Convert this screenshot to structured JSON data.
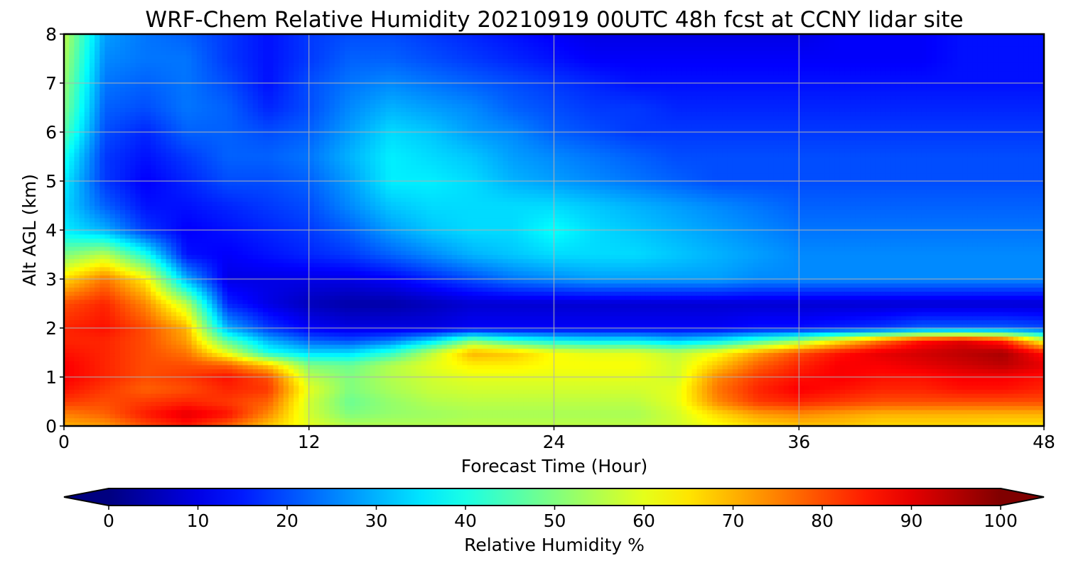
{
  "chart_data": {
    "type": "heatmap",
    "title": "WRF-Chem Relative Humidity 20210919 00UTC 48h fcst at CCNY lidar site",
    "xlabel": "Forecast Time (Hour)",
    "ylabel": "Alt AGL (km)",
    "xlim": [
      0,
      48
    ],
    "ylim": [
      0,
      8
    ],
    "x_ticks": [
      "0",
      "12",
      "24",
      "36",
      "48"
    ],
    "y_ticks": [
      "0",
      "1",
      "2",
      "3",
      "4",
      "5",
      "6",
      "7",
      "8"
    ],
    "grid": true,
    "colormap": "jet",
    "colorbar": {
      "label": "Relative Humidity %",
      "orientation": "horizontal",
      "location": "bottom",
      "range": [
        0,
        100
      ],
      "ticks": [
        "0",
        "10",
        "20",
        "30",
        "40",
        "50",
        "60",
        "70",
        "80",
        "90",
        "100"
      ],
      "extend": "both"
    },
    "x": [
      0,
      2,
      4,
      6,
      8,
      10,
      12,
      14,
      16,
      18,
      20,
      22,
      24,
      26,
      28,
      30,
      32,
      34,
      36,
      38,
      40,
      42,
      44,
      46,
      48
    ],
    "y": [
      0,
      0.25,
      0.5,
      0.75,
      1,
      1.25,
      1.5,
      1.75,
      2,
      2.5,
      3,
      3.5,
      4,
      4.5,
      5,
      5.5,
      6,
      6.5,
      7,
      7.5,
      8
    ],
    "z_rows_by_altitude": [
      [
        70,
        72,
        80,
        85,
        78,
        68,
        60,
        55,
        55,
        55,
        56,
        56,
        56,
        56,
        56,
        58,
        62,
        66,
        68,
        68,
        66,
        66,
        66,
        65,
        65
      ],
      [
        75,
        78,
        85,
        90,
        86,
        74,
        58,
        50,
        52,
        53,
        54,
        54,
        54,
        54,
        54,
        58,
        66,
        72,
        74,
        72,
        70,
        70,
        70,
        70,
        70
      ],
      [
        82,
        80,
        82,
        84,
        82,
        78,
        58,
        48,
        52,
        55,
        56,
        56,
        56,
        56,
        56,
        60,
        74,
        82,
        84,
        82,
        80,
        80,
        80,
        80,
        80
      ],
      [
        86,
        82,
        78,
        80,
        84,
        82,
        60,
        50,
        54,
        57,
        58,
        58,
        58,
        58,
        58,
        60,
        76,
        84,
        88,
        86,
        84,
        84,
        86,
        86,
        84
      ],
      [
        88,
        84,
        80,
        82,
        86,
        80,
        56,
        50,
        55,
        58,
        60,
        60,
        60,
        60,
        60,
        58,
        74,
        82,
        86,
        88,
        86,
        86,
        88,
        88,
        86
      ],
      [
        88,
        84,
        80,
        80,
        78,
        68,
        50,
        48,
        55,
        60,
        64,
        64,
        62,
        62,
        62,
        58,
        68,
        78,
        84,
        88,
        88,
        90,
        92,
        94,
        90
      ],
      [
        86,
        84,
        80,
        76,
        60,
        40,
        34,
        34,
        42,
        56,
        70,
        68,
        62,
        60,
        60,
        56,
        62,
        72,
        80,
        86,
        90,
        92,
        94,
        96,
        86
      ],
      [
        84,
        84,
        80,
        72,
        46,
        30,
        22,
        20,
        24,
        34,
        50,
        42,
        38,
        36,
        36,
        32,
        36,
        44,
        52,
        64,
        76,
        86,
        90,
        84,
        60
      ],
      [
        84,
        86,
        80,
        70,
        30,
        18,
        12,
        10,
        10,
        10,
        12,
        12,
        12,
        12,
        12,
        12,
        12,
        14,
        14,
        16,
        18,
        22,
        22,
        22,
        20
      ],
      [
        80,
        84,
        74,
        56,
        16,
        10,
        6,
        4,
        4,
        6,
        8,
        8,
        8,
        8,
        8,
        8,
        8,
        8,
        8,
        8,
        8,
        8,
        8,
        8,
        8
      ],
      [
        66,
        76,
        64,
        30,
        10,
        10,
        10,
        10,
        12,
        16,
        20,
        24,
        26,
        28,
        28,
        28,
        28,
        26,
        26,
        26,
        26,
        26,
        26,
        26,
        26
      ],
      [
        50,
        56,
        40,
        14,
        12,
        14,
        16,
        18,
        22,
        26,
        30,
        32,
        34,
        34,
        34,
        32,
        30,
        28,
        26,
        26,
        26,
        26,
        26,
        26,
        26
      ],
      [
        36,
        30,
        18,
        12,
        14,
        16,
        18,
        22,
        28,
        32,
        34,
        34,
        38,
        34,
        32,
        30,
        28,
        26,
        24,
        24,
        24,
        24,
        24,
        24,
        24
      ],
      [
        34,
        22,
        14,
        14,
        16,
        18,
        20,
        26,
        32,
        34,
        34,
        34,
        34,
        32,
        30,
        28,
        26,
        24,
        22,
        22,
        22,
        22,
        22,
        22,
        22
      ],
      [
        36,
        18,
        12,
        16,
        20,
        20,
        22,
        28,
        36,
        36,
        34,
        30,
        28,
        26,
        24,
        22,
        20,
        20,
        20,
        20,
        20,
        20,
        20,
        20,
        20
      ],
      [
        40,
        18,
        14,
        18,
        22,
        22,
        24,
        30,
        36,
        34,
        32,
        28,
        26,
        24,
        22,
        20,
        20,
        20,
        20,
        20,
        20,
        20,
        20,
        20,
        20
      ],
      [
        46,
        20,
        16,
        22,
        22,
        20,
        22,
        28,
        34,
        32,
        28,
        26,
        22,
        20,
        18,
        18,
        18,
        18,
        18,
        18,
        18,
        18,
        18,
        18,
        18
      ],
      [
        50,
        22,
        20,
        24,
        22,
        16,
        20,
        26,
        30,
        28,
        26,
        22,
        20,
        18,
        18,
        16,
        16,
        16,
        16,
        16,
        16,
        16,
        16,
        16,
        16
      ],
      [
        52,
        24,
        22,
        24,
        20,
        14,
        20,
        24,
        26,
        24,
        22,
        20,
        18,
        16,
        14,
        14,
        14,
        14,
        14,
        14,
        14,
        14,
        14,
        14,
        14
      ],
      [
        54,
        26,
        24,
        24,
        18,
        14,
        18,
        22,
        22,
        20,
        18,
        16,
        14,
        12,
        12,
        12,
        12,
        12,
        12,
        12,
        12,
        12,
        14,
        14,
        14
      ],
      [
        56,
        28,
        24,
        22,
        18,
        14,
        18,
        20,
        20,
        18,
        16,
        14,
        12,
        10,
        10,
        10,
        10,
        10,
        10,
        12,
        12,
        12,
        14,
        14,
        14
      ]
    ]
  }
}
